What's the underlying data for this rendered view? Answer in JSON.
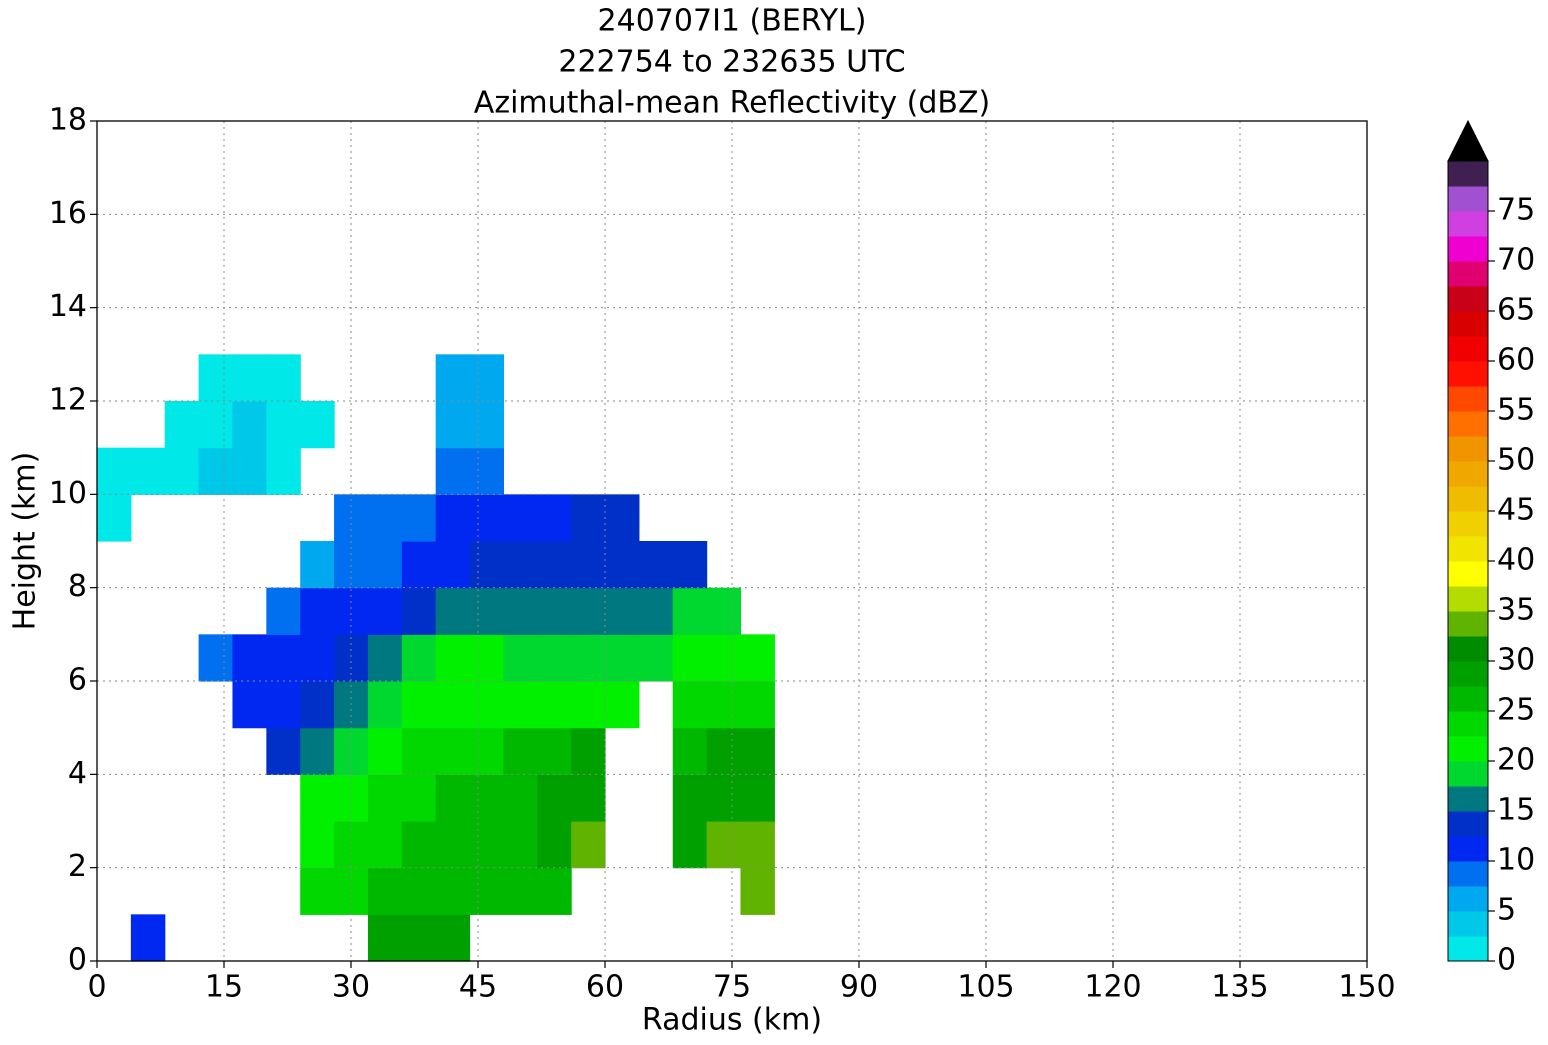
{
  "chart_data": {
    "type": "heatmap",
    "title": [
      "240707I1 (BERYL)",
      "222754 to 232635 UTC",
      "Azimuthal-mean Reflectivity (dBZ)"
    ],
    "xlabel": "Radius (km)",
    "ylabel": "Height (km)",
    "xlim": [
      0,
      150
    ],
    "xticks": [
      0,
      15,
      30,
      45,
      60,
      75,
      90,
      105,
      120,
      135,
      150
    ],
    "ylim": [
      0,
      18
    ],
    "yticks": [
      0,
      2,
      4,
      6,
      8,
      10,
      12,
      14,
      16,
      18
    ],
    "grid": true,
    "field": {
      "radius": [
        2,
        6,
        10,
        14,
        18,
        22,
        26,
        30,
        34,
        38,
        42,
        46,
        50,
        54,
        58,
        62,
        66,
        70,
        74,
        78
      ],
      "height": [
        0.5,
        1.5,
        2.5,
        3.5,
        4.5,
        5.5,
        6.5,
        7.5,
        8.5,
        9.5,
        10.5,
        11.5,
        12.5
      ],
      "values": [
        [
          null,
          11,
          null,
          null,
          null,
          null,
          null,
          null,
          28,
          28,
          28,
          null,
          null,
          null,
          null,
          null,
          null,
          null,
          null,
          null
        ],
        [
          null,
          null,
          null,
          null,
          null,
          null,
          23,
          23,
          26,
          26,
          26,
          26,
          26,
          26,
          null,
          null,
          null,
          null,
          null,
          33
        ],
        [
          null,
          null,
          null,
          null,
          null,
          null,
          21,
          23,
          23,
          26,
          26,
          26,
          26,
          28,
          33,
          null,
          null,
          28,
          33,
          33
        ],
        [
          null,
          null,
          null,
          null,
          null,
          null,
          21,
          21,
          23,
          23,
          26,
          26,
          26,
          28,
          28,
          null,
          null,
          28,
          28,
          28
        ],
        [
          null,
          null,
          null,
          null,
          null,
          13,
          16,
          18,
          21,
          23,
          23,
          23,
          26,
          26,
          28,
          null,
          null,
          26,
          28,
          28
        ],
        [
          null,
          null,
          null,
          null,
          11,
          11,
          13,
          16,
          18,
          21,
          21,
          21,
          21,
          21,
          21,
          21,
          null,
          23,
          23,
          23
        ],
        [
          null,
          null,
          null,
          8.5,
          11,
          11,
          11,
          13,
          16,
          18,
          21,
          21,
          18,
          18,
          18,
          18,
          18,
          21,
          21,
          21
        ],
        [
          null,
          null,
          null,
          null,
          null,
          8.5,
          11,
          11,
          11,
          13,
          16,
          16,
          16,
          16,
          16,
          16,
          16,
          18,
          18,
          null
        ],
        [
          null,
          null,
          null,
          null,
          null,
          null,
          6,
          8.5,
          8.5,
          11,
          11,
          13,
          13,
          13,
          13,
          13,
          13,
          13,
          null,
          null
        ],
        [
          1,
          null,
          null,
          null,
          null,
          null,
          null,
          8.5,
          8.5,
          8.5,
          11,
          11,
          11,
          11,
          13,
          13,
          null,
          null,
          null,
          null
        ],
        [
          1,
          1,
          1,
          3,
          3,
          1,
          null,
          null,
          null,
          null,
          9,
          9,
          null,
          null,
          null,
          null,
          null,
          null,
          null,
          null
        ],
        [
          null,
          null,
          1,
          1,
          3,
          2,
          1,
          null,
          null,
          null,
          6,
          6,
          null,
          null,
          null,
          null,
          null,
          null,
          null,
          null
        ],
        [
          null,
          null,
          null,
          1,
          1,
          1,
          null,
          null,
          null,
          null,
          6,
          6,
          null,
          null,
          null,
          null,
          null,
          null,
          null,
          null
        ]
      ]
    },
    "colorbar": {
      "levels": [
        0,
        2.5,
        5,
        7.5,
        10,
        12.5,
        15,
        17.5,
        20,
        22.5,
        25,
        27.5,
        30,
        32.5,
        35,
        37.5,
        40,
        42.5,
        45,
        47.5,
        50,
        52.5,
        55,
        57.5,
        60,
        62.5,
        65,
        67.5,
        70,
        72.5,
        75,
        77.5,
        80
      ],
      "colors": [
        "#00e8e8",
        "#00c8e8",
        "#00a8f0",
        "#0070f0",
        "#0028f0",
        "#0030c8",
        "#007880",
        "#00d830",
        "#00f000",
        "#00d800",
        "#00b800",
        "#00a000",
        "#008c00",
        "#60b400",
        "#b4dc00",
        "#ffff00",
        "#f0e400",
        "#f0d000",
        "#f0bc00",
        "#f0a800",
        "#f09400",
        "#ff7000",
        "#ff4800",
        "#ff1000",
        "#f00000",
        "#d80000",
        "#c80018",
        "#e00070",
        "#f000d0",
        "#d040e0",
        "#a050d0",
        "#402050"
      ],
      "extend_color": "#000000",
      "ticks": [
        0,
        5,
        10,
        15,
        20,
        25,
        30,
        35,
        40,
        45,
        50,
        55,
        60,
        65,
        70,
        75
      ]
    }
  }
}
